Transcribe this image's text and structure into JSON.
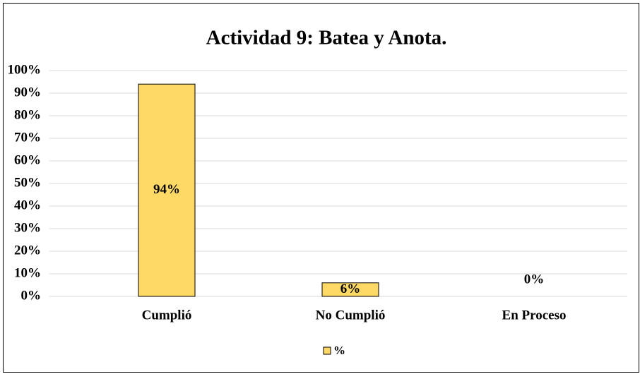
{
  "chart_data": {
    "type": "bar",
    "title": "Actividad 9: Batea y Anota.",
    "categories": [
      "Cumplió",
      "No Cumplió",
      "En Proceso"
    ],
    "series": [
      {
        "name": "%",
        "color": "#FFD966",
        "values": [
          94,
          6,
          0
        ],
        "value_labels": [
          "94%",
          "6%",
          "0%"
        ]
      }
    ],
    "ylim": [
      0,
      100
    ],
    "yticks": [
      {
        "value": 0,
        "label": "0%"
      },
      {
        "value": 10,
        "label": "10%"
      },
      {
        "value": 20,
        "label": "20%"
      },
      {
        "value": 30,
        "label": "30%"
      },
      {
        "value": 40,
        "label": "40%"
      },
      {
        "value": 50,
        "label": "50%"
      },
      {
        "value": 60,
        "label": "60%"
      },
      {
        "value": 70,
        "label": "70%"
      },
      {
        "value": 80,
        "label": "80%"
      },
      {
        "value": 90,
        "label": "90%"
      },
      {
        "value": 100,
        "label": "100%"
      }
    ],
    "grid": true,
    "legend": "bottom"
  }
}
